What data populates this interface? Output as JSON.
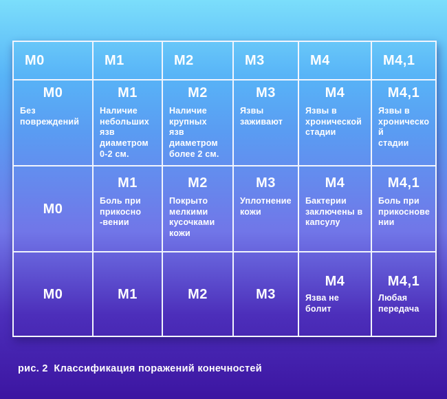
{
  "figure": {
    "caption": "рис. 2  Классификация поражений конечностей"
  },
  "colors": {
    "gradient_top": "#7bdefb",
    "gradient_upper_blue": "#58b4f7",
    "gradient_mid_blue": "#5a9cf2",
    "gradient_periwinkle": "#7176e8",
    "gradient_lower_purple": "#4c2eba",
    "gradient_bottom_indigo": "#3c15a1",
    "table_border": "#f2f5fd",
    "text": "#ffffff"
  },
  "table": {
    "rows": [
      {
        "type": "header",
        "cells": [
          {
            "label": "M0"
          },
          {
            "label": "M1"
          },
          {
            "label": "M2"
          },
          {
            "label": "M3"
          },
          {
            "label": "M4"
          },
          {
            "label": "M4,1"
          }
        ]
      },
      {
        "type": "body",
        "cells": [
          {
            "label": "M0",
            "desc": "Без\nповреждений"
          },
          {
            "label": "M1",
            "desc": "Наличие\nнебольших\nязв\nдиаметром\n0-2 см."
          },
          {
            "label": "M2",
            "desc": "Наличие\nкрупных\nязв\nдиаметром\nболее 2 см."
          },
          {
            "label": "M3",
            "desc": "Язвы\nзаживают"
          },
          {
            "label": "M4",
            "desc": "Язвы в\nхронической\nстадии"
          },
          {
            "label": "M4,1",
            "desc": "Язвы в\nхронической\nстадии"
          }
        ]
      },
      {
        "type": "body",
        "cells": [
          {
            "label": "M0"
          },
          {
            "label": "M1",
            "desc": "Боль при\nприкосно\n-вении"
          },
          {
            "label": "M2",
            "desc": "Покрыто\nмелкими\nкусочками\nкожи"
          },
          {
            "label": "M3",
            "desc": "Уплотнение\nкожи"
          },
          {
            "label": "M4",
            "desc": "Бактерии\nзаключены в\nкапсулу"
          },
          {
            "label": "M4,1",
            "desc": "Боль при\nприкосновении"
          }
        ]
      },
      {
        "type": "body",
        "cells": [
          {
            "label": "M0"
          },
          {
            "label": "M1"
          },
          {
            "label": "M2"
          },
          {
            "label": "M3"
          },
          {
            "label": "M4",
            "desc": "Язва не\nболит"
          },
          {
            "label": "M4,1",
            "desc": "Любая\nпередача"
          }
        ]
      }
    ]
  }
}
